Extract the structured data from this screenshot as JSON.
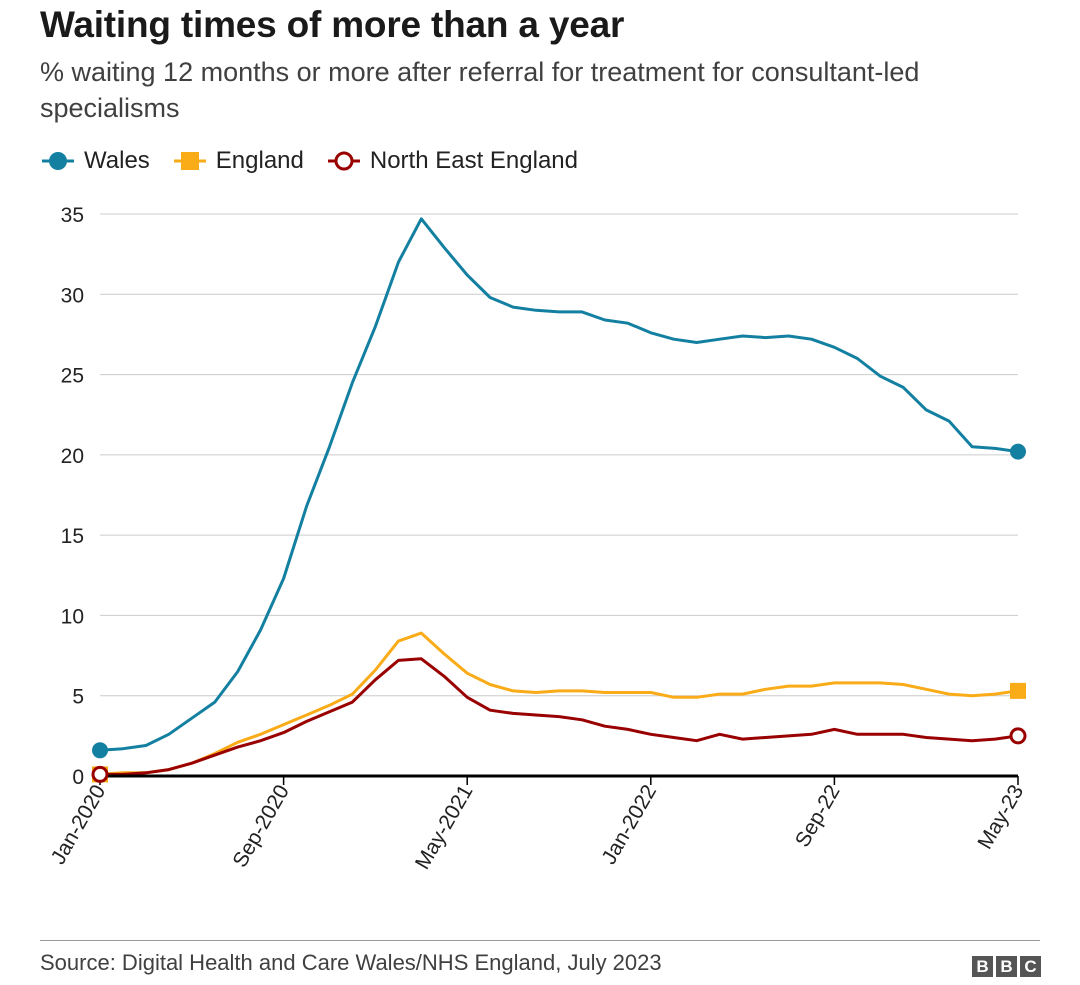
{
  "header": {
    "title": "Waiting times of more than a year",
    "subtitle": "% waiting 12 months or more after referral for treatment for consultant-led specialisms"
  },
  "legend": [
    {
      "label": "Wales",
      "color": "#1380A1",
      "marker": "circle-filled"
    },
    {
      "label": "England",
      "color": "#FAAB18",
      "marker": "square-filled"
    },
    {
      "label": "North East England",
      "color": "#990000",
      "marker": "circle-open"
    }
  ],
  "footer": {
    "source": "Source: Digital Health and Care Wales/NHS England, July 2023",
    "logo_letters": [
      "B",
      "B",
      "C"
    ]
  },
  "chart_data": {
    "type": "line",
    "x": [
      "Jan-2020",
      "Feb-2020",
      "Mar-2020",
      "Apr-2020",
      "May-2020",
      "Jun-2020",
      "Jul-2020",
      "Aug-2020",
      "Sep-2020",
      "Oct-2020",
      "Nov-2020",
      "Dec-2020",
      "Jan-2021",
      "Feb-2021",
      "Mar-2021",
      "Apr-2021",
      "May-2021",
      "Jun-2021",
      "Jul-2021",
      "Aug-2021",
      "Sep-2021",
      "Oct-2021",
      "Nov-2021",
      "Dec-2021",
      "Jan-2022",
      "Feb-2022",
      "Mar-2022",
      "Apr-2022",
      "May-2022",
      "Jun-2022",
      "Jul-2022",
      "Aug-2022",
      "Sep-2022",
      "Oct-2022",
      "Nov-2022",
      "Dec-2022",
      "Jan-2023",
      "Feb-2023",
      "Mar-2023",
      "Apr-2023",
      "May-2023"
    ],
    "x_tick_labels": [
      "Jan-2020",
      "Sep-2020",
      "May-2021",
      "Jan-2022",
      "Sep-22",
      "May-23"
    ],
    "x_tick_positions": [
      "Jan-2020",
      "Sep-2020",
      "May-2021",
      "Jan-2022",
      "Sep-2022",
      "May-2023"
    ],
    "ylim": [
      0,
      35
    ],
    "y_ticks": [
      0,
      5,
      10,
      15,
      20,
      25,
      30,
      35
    ],
    "grid": true,
    "legend_position": "top-left",
    "series": [
      {
        "name": "Wales",
        "color": "#1380A1",
        "values": [
          1.6,
          1.7,
          1.9,
          2.6,
          3.6,
          4.6,
          6.5,
          9.1,
          12.3,
          16.8,
          20.5,
          24.5,
          28.0,
          32.0,
          34.7,
          32.9,
          31.2,
          29.8,
          29.2,
          29.0,
          28.9,
          28.9,
          28.4,
          28.2,
          27.6,
          27.2,
          27.0,
          27.2,
          27.4,
          27.3,
          27.4,
          27.2,
          26.7,
          26.0,
          24.9,
          24.2,
          22.8,
          22.1,
          20.5,
          20.4,
          20.2
        ]
      },
      {
        "name": "England",
        "color": "#FAAB18",
        "values": [
          0.1,
          0.2,
          0.2,
          0.4,
          0.8,
          1.4,
          2.1,
          2.6,
          3.2,
          3.8,
          4.4,
          5.1,
          6.6,
          8.4,
          8.9,
          7.6,
          6.4,
          5.7,
          5.3,
          5.2,
          5.3,
          5.3,
          5.2,
          5.2,
          5.2,
          4.9,
          4.9,
          5.1,
          5.1,
          5.4,
          5.6,
          5.6,
          5.8,
          5.8,
          5.8,
          5.7,
          5.4,
          5.1,
          5.0,
          5.1,
          5.3
        ]
      },
      {
        "name": "North East England",
        "color": "#990000",
        "values": [
          0.1,
          0.1,
          0.2,
          0.4,
          0.8,
          1.3,
          1.8,
          2.2,
          2.7,
          3.4,
          4.0,
          4.6,
          6.0,
          7.2,
          7.3,
          6.2,
          4.9,
          4.1,
          3.9,
          3.8,
          3.7,
          3.5,
          3.1,
          2.9,
          2.6,
          2.4,
          2.2,
          2.6,
          2.3,
          2.4,
          2.5,
          2.6,
          2.9,
          2.6,
          2.6,
          2.6,
          2.4,
          2.3,
          2.2,
          2.3,
          2.5
        ]
      }
    ]
  }
}
